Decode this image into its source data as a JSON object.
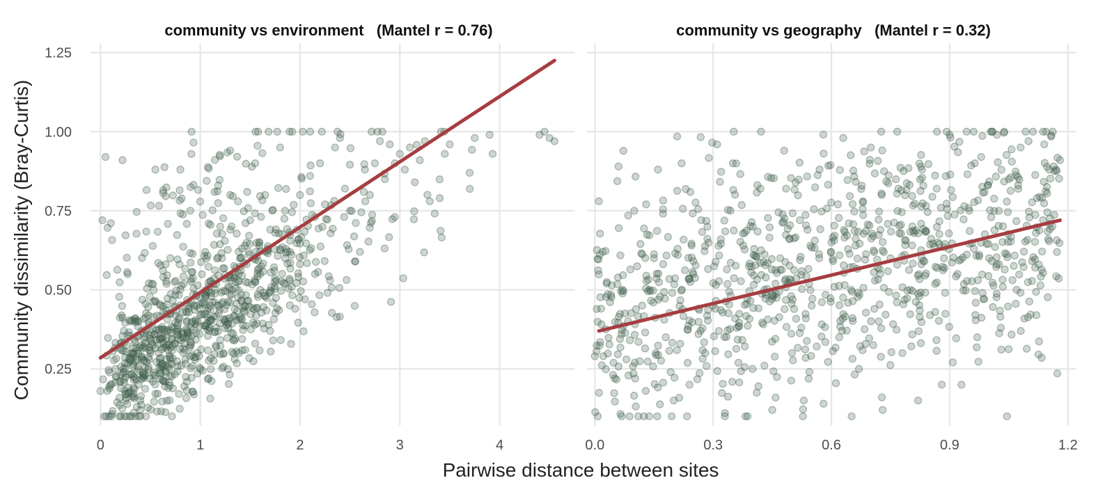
{
  "chart_data": [
    {
      "type": "scatter",
      "title": "community vs environment   (Mantel r = 0.76)",
      "xlim": [
        -0.1,
        4.75
      ],
      "ylim": [
        0.07,
        1.28
      ],
      "x_ticks": [
        0,
        1,
        2,
        3,
        4
      ],
      "x_tick_labels": [
        "0",
        "1",
        "2",
        "3",
        "4"
      ],
      "y_ticks": [
        0.25,
        0.5,
        0.75,
        1.0,
        1.25
      ],
      "y_tick_labels": [
        "0.25",
        "0.50",
        "0.75",
        "1.00",
        "1.25"
      ],
      "fit_line": {
        "x": [
          0,
          4.55
        ],
        "y": [
          0.285,
          1.225
        ]
      },
      "points_summary": {
        "count": 1000,
        "x_range": [
          0,
          4.55
        ],
        "y_range": [
          0.1,
          1.0
        ],
        "trend": "positive, dense cluster near x 0–1 and y 0.15–0.45"
      },
      "points": [
        [
          0.0,
          0.18
        ],
        [
          0.05,
          0.92
        ],
        [
          0.02,
          0.72
        ],
        [
          0.1,
          0.2
        ],
        [
          0.15,
          0.25
        ],
        [
          0.2,
          0.33
        ],
        [
          0.22,
          0.91
        ],
        [
          0.25,
          0.15
        ],
        [
          0.3,
          0.4
        ],
        [
          0.35,
          0.22
        ],
        [
          0.4,
          0.12
        ],
        [
          0.45,
          0.35
        ],
        [
          0.5,
          0.3
        ],
        [
          0.55,
          0.88
        ],
        [
          0.6,
          0.45
        ],
        [
          0.65,
          0.21
        ],
        [
          0.7,
          0.6
        ],
        [
          0.75,
          0.33
        ],
        [
          0.8,
          0.88
        ],
        [
          0.85,
          0.28
        ],
        [
          0.9,
          0.75
        ],
        [
          0.95,
          0.4
        ],
        [
          1.0,
          0.42
        ],
        [
          1.05,
          0.62
        ],
        [
          1.1,
          0.45
        ],
        [
          1.15,
          0.5
        ],
        [
          1.2,
          0.7
        ],
        [
          1.25,
          0.4
        ],
        [
          1.3,
          0.8
        ],
        [
          1.35,
          0.55
        ],
        [
          1.4,
          0.6
        ],
        [
          1.45,
          0.31
        ],
        [
          1.5,
          0.72
        ],
        [
          1.55,
          0.9
        ],
        [
          1.6,
          0.55
        ],
        [
          1.65,
          0.8
        ],
        [
          1.7,
          0.37
        ],
        [
          1.75,
          0.68
        ],
        [
          1.8,
          0.95
        ],
        [
          1.85,
          0.75
        ],
        [
          1.9,
          0.62
        ],
        [
          1.95,
          0.44
        ],
        [
          2.0,
          0.8
        ],
        [
          2.05,
          0.47
        ],
        [
          2.1,
          0.86
        ],
        [
          2.15,
          0.55
        ],
        [
          2.2,
          0.9
        ],
        [
          2.25,
          0.77
        ],
        [
          2.3,
          0.53
        ],
        [
          2.35,
          0.95
        ],
        [
          2.4,
          0.98
        ],
        [
          2.45,
          0.82
        ],
        [
          2.5,
          0.75
        ],
        [
          2.55,
          0.59
        ],
        [
          2.6,
          0.62
        ],
        [
          2.65,
          0.88
        ],
        [
          2.7,
          0.8
        ],
        [
          2.75,
          0.9
        ],
        [
          2.8,
          0.97
        ],
        [
          2.85,
          0.85
        ],
        [
          2.9,
          0.96
        ],
        [
          2.95,
          0.9
        ],
        [
          3.0,
          0.93
        ],
        [
          3.05,
          0.88
        ],
        [
          3.1,
          0.95
        ],
        [
          3.15,
          0.84
        ],
        [
          3.2,
          0.91
        ],
        [
          3.25,
          0.97
        ],
        [
          3.3,
          0.78
        ],
        [
          3.4,
          0.79
        ],
        [
          3.45,
          0.93
        ],
        [
          3.5,
          0.96
        ],
        [
          3.7,
          0.87
        ],
        [
          3.75,
          0.98
        ],
        [
          3.9,
          0.99
        ],
        [
          3.93,
          0.93
        ],
        [
          4.4,
          0.99
        ],
        [
          4.45,
          1.0
        ],
        [
          4.5,
          0.98
        ],
        [
          4.55,
          0.97
        ]
      ]
    },
    {
      "type": "scatter",
      "title": "community vs geography   (Mantel r = 0.32)",
      "xlim": [
        -0.02,
        1.22
      ],
      "ylim": [
        0.07,
        1.28
      ],
      "x_ticks": [
        0.0,
        0.3,
        0.6,
        0.9,
        1.2
      ],
      "x_tick_labels": [
        "0.0",
        "0.3",
        "0.6",
        "0.9",
        "1.2"
      ],
      "y_ticks": [
        0.25,
        0.5,
        0.75,
        1.0,
        1.25
      ],
      "fit_line": {
        "x": [
          0.01,
          1.18
        ],
        "y": [
          0.37,
          0.72
        ]
      },
      "points_summary": {
        "count": 1000,
        "x_range": [
          0.0,
          1.18
        ],
        "y_range": [
          0.1,
          1.0
        ],
        "trend": "weak positive, widely scattered"
      },
      "points": [
        [
          0.0,
          0.29
        ],
        [
          0.01,
          0.78
        ],
        [
          0.02,
          0.62
        ],
        [
          0.03,
          0.52
        ],
        [
          0.05,
          0.22
        ],
        [
          0.06,
          0.89
        ],
        [
          0.07,
          0.5
        ],
        [
          0.08,
          0.28
        ],
        [
          0.1,
          0.75
        ],
        [
          0.11,
          0.1
        ],
        [
          0.12,
          0.45
        ],
        [
          0.13,
          0.77
        ],
        [
          0.15,
          0.6
        ],
        [
          0.16,
          0.88
        ],
        [
          0.18,
          0.35
        ],
        [
          0.2,
          0.15
        ],
        [
          0.21,
          0.63
        ],
        [
          0.22,
          0.9
        ],
        [
          0.24,
          0.2
        ],
        [
          0.25,
          0.55
        ],
        [
          0.27,
          0.72
        ],
        [
          0.28,
          0.3
        ],
        [
          0.3,
          0.45
        ],
        [
          0.31,
          0.96
        ],
        [
          0.33,
          0.11
        ],
        [
          0.35,
          0.9
        ],
        [
          0.36,
          0.38
        ],
        [
          0.38,
          0.68
        ],
        [
          0.4,
          0.25
        ],
        [
          0.42,
          0.82
        ],
        [
          0.43,
          0.5
        ],
        [
          0.45,
          0.12
        ],
        [
          0.47,
          0.6
        ],
        [
          0.48,
          0.94
        ],
        [
          0.5,
          0.3
        ],
        [
          0.52,
          0.72
        ],
        [
          0.53,
          0.15
        ],
        [
          0.55,
          0.45
        ],
        [
          0.57,
          0.88
        ],
        [
          0.58,
          0.14
        ],
        [
          0.6,
          0.65
        ],
        [
          0.62,
          0.35
        ],
        [
          0.63,
          0.98
        ],
        [
          0.65,
          0.5
        ],
        [
          0.67,
          0.25
        ],
        [
          0.68,
          0.78
        ],
        [
          0.7,
          0.95
        ],
        [
          0.72,
          0.4
        ],
        [
          0.73,
          0.12
        ],
        [
          0.75,
          0.6
        ],
        [
          0.77,
          0.82
        ],
        [
          0.78,
          0.3
        ],
        [
          0.8,
          0.5
        ],
        [
          0.82,
          0.15
        ],
        [
          0.83,
          0.88
        ],
        [
          0.85,
          0.42
        ],
        [
          0.87,
          0.65
        ],
        [
          0.88,
          0.2
        ],
        [
          0.9,
          0.99
        ],
        [
          0.92,
          0.55
        ],
        [
          0.93,
          0.2
        ],
        [
          0.95,
          0.75
        ],
        [
          0.97,
          0.35
        ],
        [
          0.98,
          0.92
        ],
        [
          1.0,
          0.6
        ],
        [
          1.02,
          0.99
        ],
        [
          1.03,
          0.38
        ],
        [
          1.05,
          0.85
        ],
        [
          1.07,
          0.5
        ],
        [
          1.08,
          0.95
        ],
        [
          1.1,
          0.97
        ],
        [
          1.12,
          0.42
        ],
        [
          1.14,
          0.96
        ],
        [
          1.15,
          0.66
        ],
        [
          1.17,
          0.88
        ],
        [
          1.18,
          0.91
        ]
      ]
    }
  ],
  "axes": {
    "x_title": "Pairwise distance between sites",
    "y_title": "Community dissimilarity (Bray-Curtis)"
  },
  "colors": {
    "point_fill": "#4c6b55",
    "point_stroke": "#2f4a3a",
    "fit_line": "#a63d40",
    "grid": "#e6e6e6",
    "background": "#ffffff"
  }
}
